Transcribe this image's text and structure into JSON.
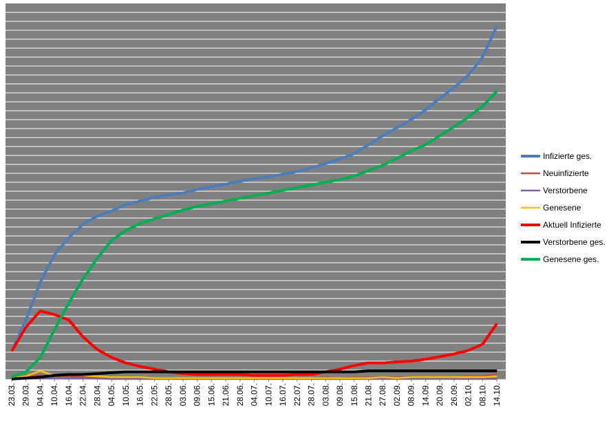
{
  "chart_data": {
    "type": "line",
    "categories": [
      "23.03.",
      "29.03.",
      "04.04.",
      "10.04.",
      "16.04.",
      "22.04.",
      "28.04.",
      "04.05.",
      "10.05.",
      "16.05.",
      "22.05.",
      "28.05.",
      "03.06.",
      "09.06.",
      "15.06.",
      "21.06.",
      "28.06.",
      "04.07.",
      "10.07.",
      "16.07.",
      "22.07.",
      "28.07.",
      "03.08.",
      "09.08.",
      "15.08.",
      "21.08.",
      "27.08.",
      "02.09.",
      "08.09.",
      "14.09.",
      "20.09.",
      "26.09.",
      "02.10.",
      "08.10.",
      "14.10."
    ],
    "ylim": [
      0,
      42
    ],
    "grid": true,
    "legend": "right",
    "series": [
      {
        "name": "Infizierte ges.",
        "color": "#4a7ebb",
        "values": [
          3.1,
          6.6,
          10.8,
          13.9,
          15.8,
          17.3,
          18.2,
          18.8,
          19.5,
          19.9,
          20.3,
          20.6,
          20.8,
          21.2,
          21.5,
          21.8,
          22.1,
          22.4,
          22.6,
          22.9,
          23.2,
          23.6,
          24.1,
          24.6,
          25.2,
          26.2,
          27.2,
          28.1,
          29.0,
          30.1,
          31.4,
          32.6,
          34.0,
          36.0,
          39.5
        ]
      },
      {
        "name": "Neuinfizierte",
        "color": "#be4b48",
        "values": [
          0.2,
          0.3,
          0.4,
          0.3,
          0.3,
          0.2,
          0.2,
          0.1,
          0.1,
          0.1,
          0.1,
          0.1,
          0.1,
          0.1,
          0.1,
          0.1,
          0.1,
          0.1,
          0.1,
          0.1,
          0.1,
          0.1,
          0.2,
          0.1,
          0.2,
          0.2,
          0.2,
          0.2,
          0.2,
          0.2,
          0.2,
          0.2,
          0.3,
          0.3,
          0.5
        ]
      },
      {
        "name": "Verstorbene",
        "color": "#7d60a0",
        "values": [
          0.0,
          0.05,
          0.05,
          0.05,
          0.05,
          0.05,
          0.05,
          0.0,
          0.0,
          0.0,
          0.0,
          0.0,
          0.0,
          0.0,
          0.0,
          0.0,
          0.0,
          0.0,
          0.0,
          0.0,
          0.0,
          0.0,
          0.0,
          0.0,
          0.0,
          0.0,
          0.0,
          0.0,
          0.0,
          0.0,
          0.0,
          0.0,
          0.0,
          0.0,
          0.0
        ]
      },
      {
        "name": "Genesene",
        "color": "#ffc000",
        "values": [
          0.1,
          0.3,
          0.9,
          0.4,
          0.5,
          0.4,
          0.3,
          0.2,
          0.2,
          0.2,
          0.1,
          0.1,
          0.1,
          0.1,
          0.1,
          0.1,
          0.1,
          0.1,
          0.1,
          0.1,
          0.1,
          0.1,
          0.1,
          0.1,
          0.1,
          0.1,
          0.2,
          0.1,
          0.2,
          0.2,
          0.2,
          0.2,
          0.2,
          0.2,
          0.3
        ]
      },
      {
        "name": "Aktuell Infizierte",
        "color": "#ff0000",
        "values": [
          3.1,
          5.8,
          7.6,
          7.2,
          6.6,
          4.7,
          3.3,
          2.4,
          1.8,
          1.4,
          1.1,
          0.8,
          0.6,
          0.5,
          0.5,
          0.5,
          0.5,
          0.4,
          0.4,
          0.4,
          0.5,
          0.5,
          0.8,
          1.1,
          1.5,
          1.8,
          1.8,
          1.9,
          2.0,
          2.2,
          2.5,
          2.8,
          3.2,
          3.9,
          6.2
        ]
      },
      {
        "name": "Verstorbene ges.",
        "color": "#000000",
        "values": [
          0.0,
          0.1,
          0.2,
          0.4,
          0.5,
          0.5,
          0.6,
          0.7,
          0.8,
          0.8,
          0.8,
          0.8,
          0.8,
          0.8,
          0.8,
          0.8,
          0.8,
          0.8,
          0.8,
          0.8,
          0.8,
          0.8,
          0.8,
          0.8,
          0.8,
          0.9,
          0.9,
          0.9,
          0.9,
          0.9,
          0.9,
          0.9,
          0.9,
          0.9,
          0.9
        ]
      },
      {
        "name": "Genesene ges.",
        "color": "#00b050",
        "values": [
          0.2,
          0.8,
          2.4,
          5.5,
          8.5,
          11.2,
          13.5,
          15.5,
          16.6,
          17.4,
          17.9,
          18.4,
          18.9,
          19.3,
          19.6,
          19.9,
          20.2,
          20.5,
          20.8,
          21.1,
          21.4,
          21.7,
          22.0,
          22.3,
          22.7,
          23.3,
          23.9,
          24.7,
          25.5,
          26.2,
          27.2,
          28.2,
          29.3,
          30.5,
          32.2
        ]
      }
    ]
  }
}
